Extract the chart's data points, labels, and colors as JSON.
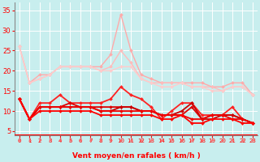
{
  "background_color": "#c8eeee",
  "grid_color": "#aadddd",
  "xlabel": "Vent moyen/en rafales ( km/h )",
  "xlim": [
    -0.5,
    23.5
  ],
  "ylim": [
    4,
    37
  ],
  "yticks": [
    5,
    10,
    15,
    20,
    25,
    30,
    35
  ],
  "xticks": [
    0,
    1,
    2,
    3,
    4,
    5,
    6,
    7,
    8,
    9,
    10,
    11,
    12,
    13,
    14,
    15,
    16,
    17,
    18,
    19,
    20,
    21,
    22,
    23
  ],
  "lines": [
    {
      "x": [
        0,
        1,
        2,
        3,
        4,
        5,
        6,
        7,
        8,
        9,
        10,
        11,
        12,
        13,
        14,
        15,
        16,
        17,
        18,
        19,
        20,
        21,
        22,
        23
      ],
      "y": [
        26,
        17,
        19,
        19,
        21,
        21,
        21,
        21,
        21,
        24,
        34,
        25,
        19,
        18,
        17,
        17,
        17,
        17,
        17,
        16,
        16,
        17,
        17,
        14
      ],
      "color": "#ffaaaa",
      "lw": 1.0,
      "marker": "D",
      "ms": 2.0
    },
    {
      "x": [
        0,
        1,
        2,
        3,
        4,
        5,
        6,
        7,
        8,
        9,
        10,
        11,
        12,
        13,
        14,
        15,
        16,
        17,
        18,
        19,
        20,
        21,
        22,
        23
      ],
      "y": [
        26,
        17,
        18,
        19,
        21,
        21,
        21,
        21,
        20,
        21,
        25,
        22,
        18,
        17,
        17,
        17,
        17,
        16,
        16,
        16,
        15,
        16,
        16,
        14
      ],
      "color": "#ffbbbb",
      "lw": 1.0,
      "marker": "D",
      "ms": 2.0
    },
    {
      "x": [
        0,
        1,
        2,
        3,
        4,
        5,
        6,
        7,
        8,
        9,
        10,
        11,
        12,
        13,
        14,
        15,
        16,
        17,
        18,
        19,
        20,
        21,
        22,
        23
      ],
      "y": [
        26,
        17,
        18,
        19,
        21,
        21,
        21,
        21,
        20,
        20,
        21,
        21,
        18,
        17,
        16,
        16,
        17,
        16,
        16,
        15,
        15,
        16,
        16,
        14
      ],
      "color": "#ffcccc",
      "lw": 1.0,
      "marker": "D",
      "ms": 2.0
    },
    {
      "x": [
        0,
        1,
        2,
        3,
        4,
        5,
        6,
        7,
        8,
        9,
        10,
        11,
        12,
        13,
        14,
        15,
        16,
        17,
        18,
        19,
        20,
        21,
        22,
        23
      ],
      "y": [
        13,
        8,
        12,
        12,
        14,
        12,
        12,
        12,
        12,
        13,
        16,
        14,
        13,
        11,
        8,
        10,
        12,
        12,
        9,
        9,
        9,
        11,
        8,
        7
      ],
      "color": "#ff2222",
      "lw": 1.3,
      "marker": "D",
      "ms": 2.0
    },
    {
      "x": [
        0,
        1,
        2,
        3,
        4,
        5,
        6,
        7,
        8,
        9,
        10,
        11,
        12,
        13,
        14,
        15,
        16,
        17,
        18,
        19,
        20,
        21,
        22,
        23
      ],
      "y": [
        13,
        8,
        11,
        11,
        11,
        12,
        11,
        11,
        11,
        11,
        11,
        11,
        10,
        10,
        9,
        9,
        9,
        11,
        8,
        9,
        9,
        9,
        8,
        7
      ],
      "color": "#dd0000",
      "lw": 1.3,
      "marker": "D",
      "ms": 2.0
    },
    {
      "x": [
        0,
        1,
        2,
        3,
        4,
        5,
        6,
        7,
        8,
        9,
        10,
        11,
        12,
        13,
        14,
        15,
        16,
        17,
        18,
        19,
        20,
        21,
        22,
        23
      ],
      "y": [
        13,
        8,
        11,
        11,
        11,
        11,
        11,
        11,
        10,
        10,
        11,
        11,
        10,
        10,
        9,
        9,
        10,
        12,
        8,
        8,
        9,
        9,
        8,
        7
      ],
      "color": "#cc0000",
      "lw": 1.3,
      "marker": "D",
      "ms": 2.0
    },
    {
      "x": [
        0,
        1,
        2,
        3,
        4,
        5,
        6,
        7,
        8,
        9,
        10,
        11,
        12,
        13,
        14,
        15,
        16,
        17,
        18,
        19,
        20,
        21,
        22,
        23
      ],
      "y": [
        13,
        8,
        11,
        11,
        11,
        11,
        11,
        11,
        10,
        10,
        10,
        10,
        10,
        10,
        9,
        9,
        9,
        8,
        8,
        9,
        9,
        8,
        8,
        7
      ],
      "color": "#ee0000",
      "lw": 1.3,
      "marker": "D",
      "ms": 2.0
    },
    {
      "x": [
        0,
        1,
        2,
        3,
        4,
        5,
        6,
        7,
        8,
        9,
        10,
        11,
        12,
        13,
        14,
        15,
        16,
        17,
        18,
        19,
        20,
        21,
        22,
        23
      ],
      "y": [
        13,
        8,
        10,
        10,
        10,
        10,
        10,
        10,
        9,
        9,
        9,
        9,
        9,
        9,
        8,
        8,
        9,
        7,
        7,
        8,
        8,
        8,
        7,
        7
      ],
      "color": "#ff0000",
      "lw": 1.3,
      "marker": "D",
      "ms": 2.0
    }
  ],
  "arrow_color": "#ff6666",
  "title_color": "#ff0000"
}
